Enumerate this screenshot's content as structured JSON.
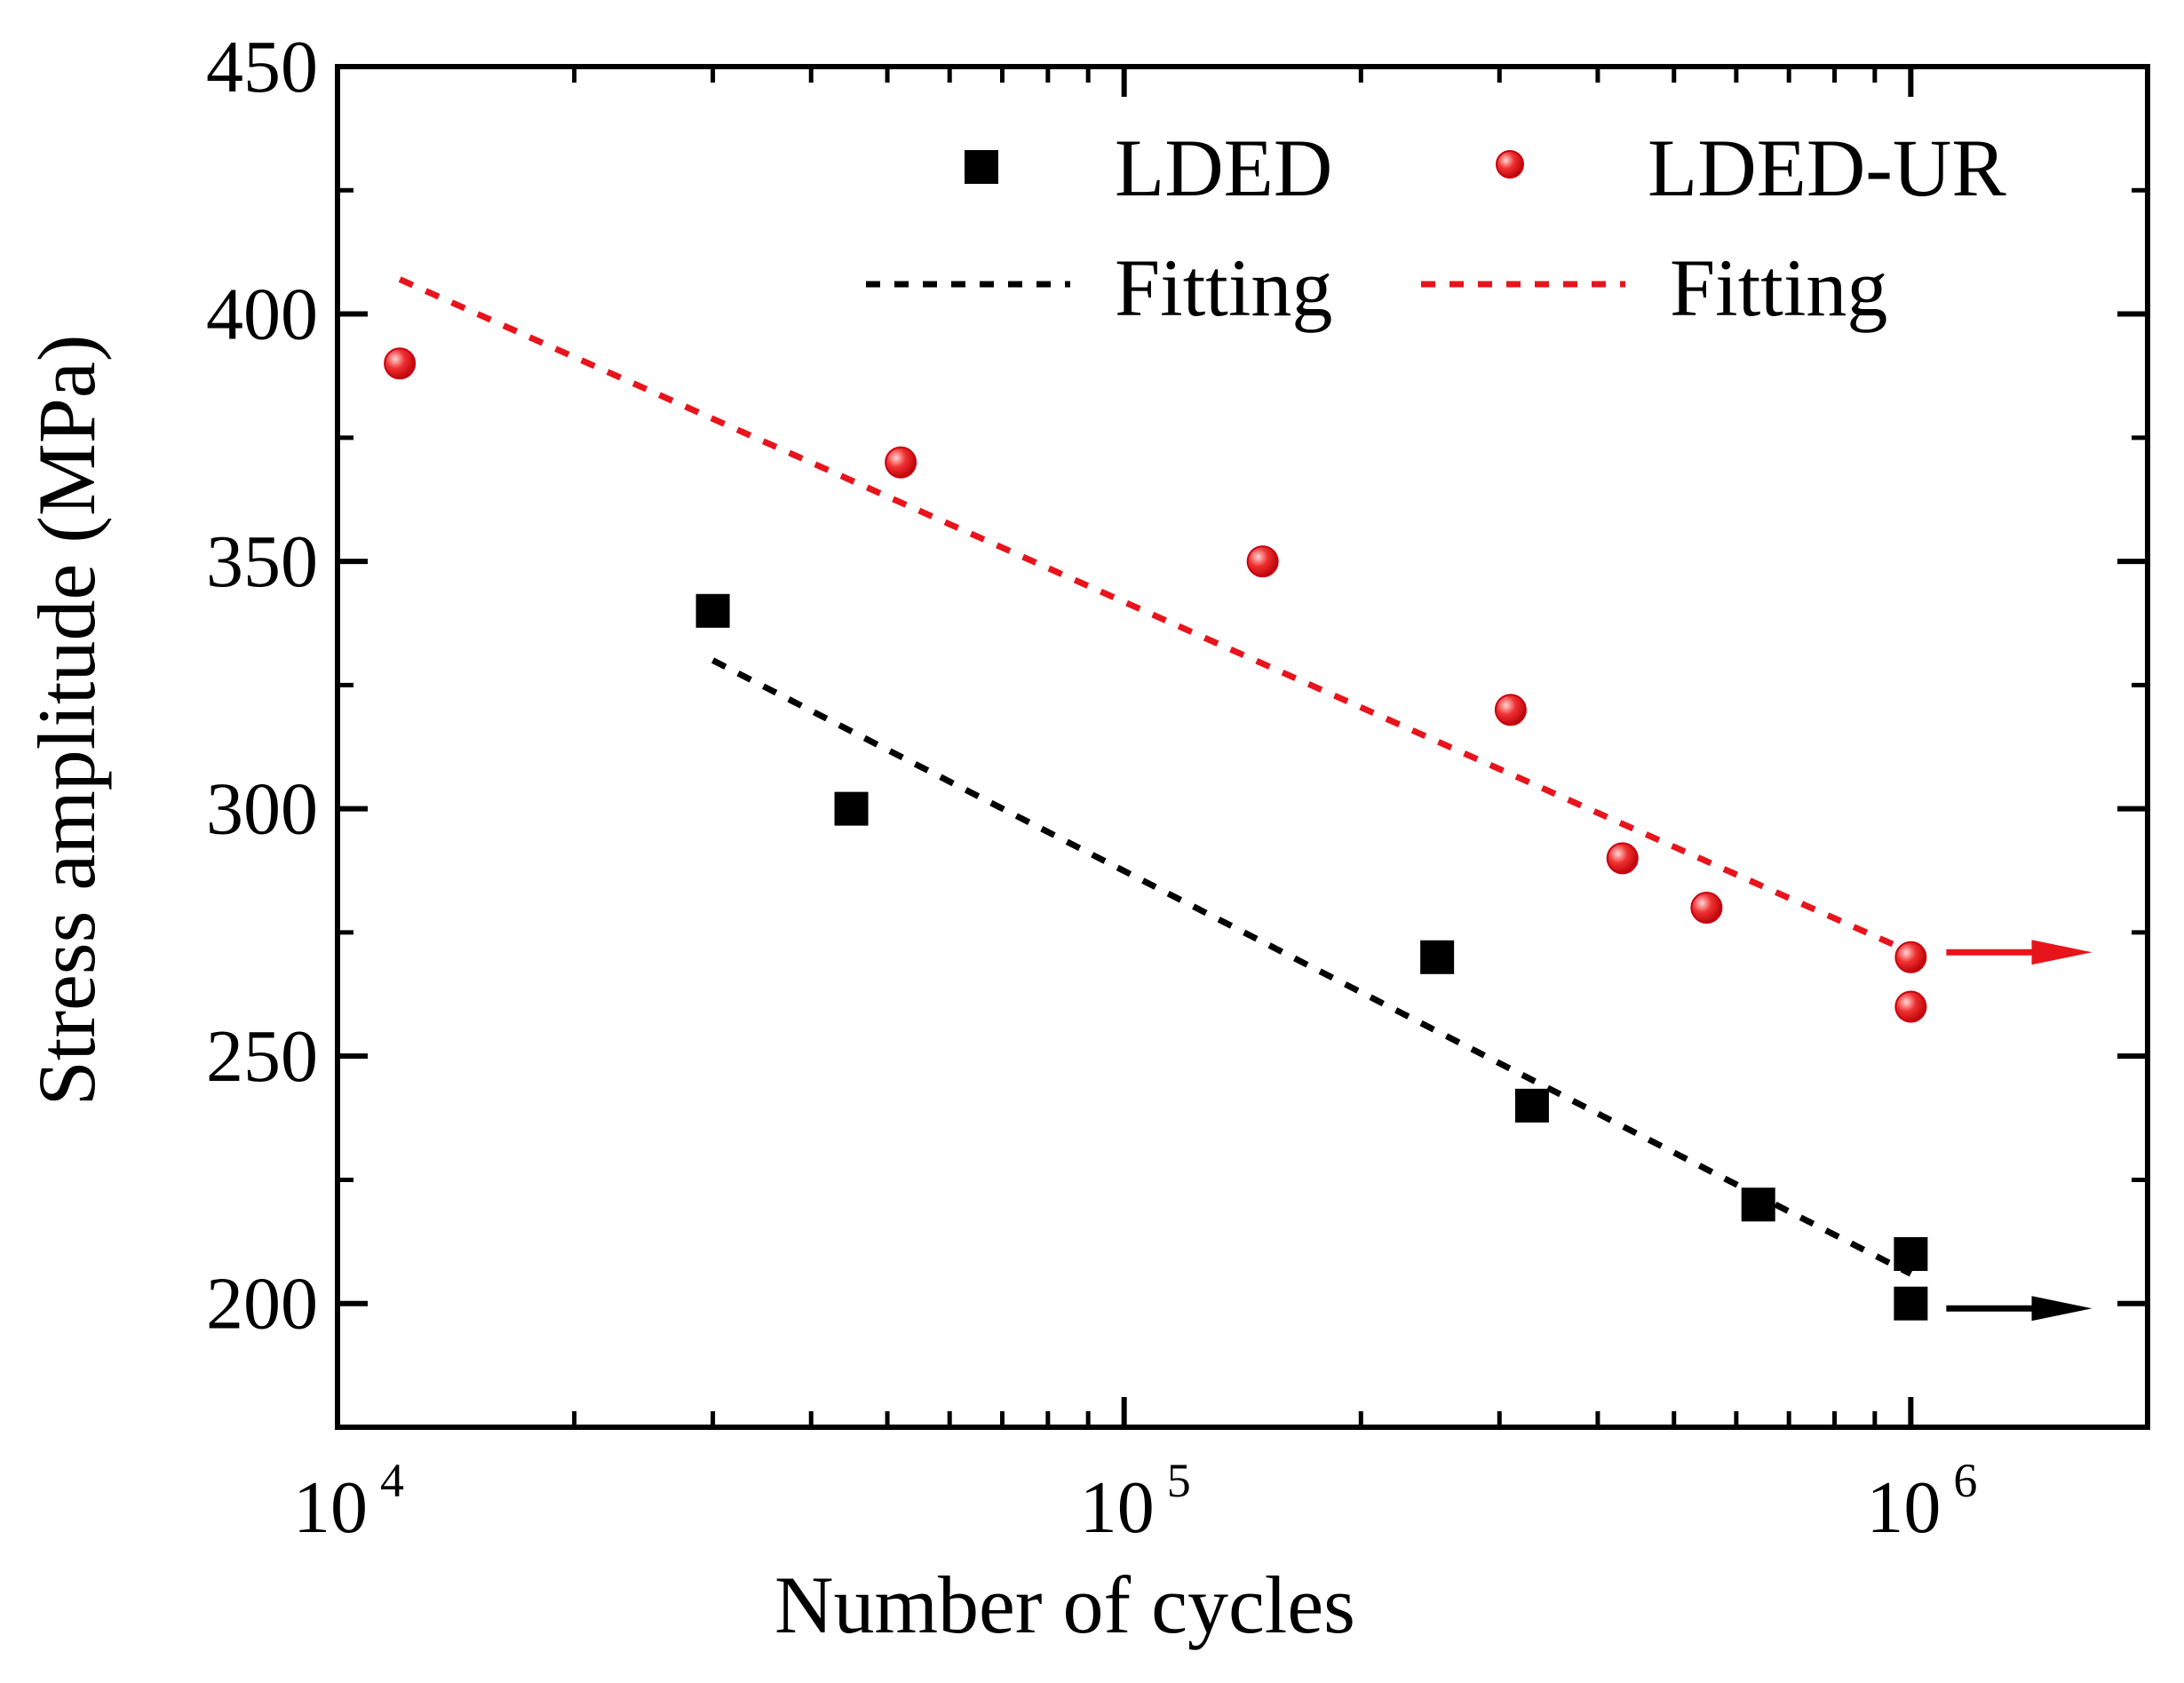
{
  "chart_data": {
    "type": "scatter",
    "xscale": "log",
    "xlabel": "Number of cycles",
    "ylabel": "Stress amplitude (MPa)",
    "xlim": [
      10000,
      2000000
    ],
    "ylim": [
      175,
      450
    ],
    "yticks": [
      {
        "value": 200,
        "label": "200"
      },
      {
        "value": 250,
        "label": "250"
      },
      {
        "value": 300,
        "label": "300"
      },
      {
        "value": 350,
        "label": "350"
      },
      {
        "value": 400,
        "label": "400"
      },
      {
        "value": 450,
        "label": "450"
      }
    ],
    "xticks": [
      {
        "value": 10000,
        "base": "10",
        "exp": "4"
      },
      {
        "value": 100000,
        "base": "10",
        "exp": "5"
      },
      {
        "value": 1000000,
        "base": "10",
        "exp": "6"
      }
    ],
    "series": [
      {
        "name": "LDED",
        "marker": "square",
        "color": "#000000",
        "points": [
          {
            "x": 30000,
            "y": 340
          },
          {
            "x": 45000,
            "y": 300
          },
          {
            "x": 250000,
            "y": 270
          },
          {
            "x": 330000,
            "y": 240
          },
          {
            "x": 640000,
            "y": 220
          },
          {
            "x": 1000000,
            "y": 210
          },
          {
            "x": 1000000,
            "y": 200
          }
        ]
      },
      {
        "name": "LDED-UR",
        "marker": "circle",
        "color": "#e8141c",
        "points": [
          {
            "x": 12000,
            "y": 390
          },
          {
            "x": 52000,
            "y": 370
          },
          {
            "x": 150000,
            "y": 350
          },
          {
            "x": 310000,
            "y": 320
          },
          {
            "x": 430000,
            "y": 290
          },
          {
            "x": 550000,
            "y": 280
          },
          {
            "x": 1000000,
            "y": 270
          },
          {
            "x": 1000000,
            "y": 260
          }
        ]
      }
    ],
    "fits": [
      {
        "name": "Fitting",
        "series": "LDED",
        "color": "#000000",
        "x": [
          30000,
          1000000
        ],
        "y": [
          330,
          206
        ]
      },
      {
        "name": "Fitting",
        "series": "LDED-UR",
        "color": "#e8141c",
        "x": [
          12000,
          1000000
        ],
        "y": [
          407,
          271
        ]
      }
    ],
    "runouts": [
      {
        "series": "LDED",
        "color": "#000000",
        "x_start": 1000000,
        "x_end": 1700000,
        "y": 199
      },
      {
        "series": "LDED-UR",
        "color": "#e8141c",
        "x_start": 1000000,
        "x_end": 1700000,
        "y": 271
      }
    ],
    "legend": {
      "position": "top-right",
      "entries": [
        {
          "label": "LDED",
          "kind": "square",
          "color": "#000000"
        },
        {
          "label": "LDED-UR",
          "kind": "circle",
          "color": "#e8141c"
        },
        {
          "label": "Fitting",
          "kind": "dash",
          "color": "#000000"
        },
        {
          "label": "Fitting",
          "kind": "dash",
          "color": "#e8141c"
        }
      ]
    }
  }
}
